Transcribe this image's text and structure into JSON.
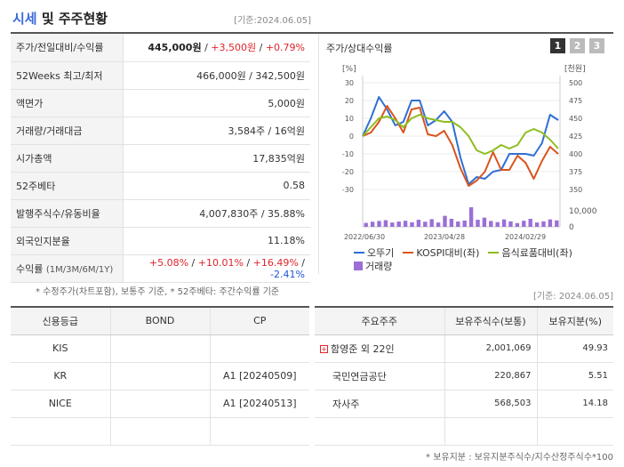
{
  "header": {
    "title_a": "시세",
    "title_b": " 및 주주현황",
    "date": "[기준:2024.06.05]"
  },
  "quote": {
    "price_row": {
      "label": "주가/전일대비/수익률",
      "price": "445,000원",
      "sep1": " / ",
      "change": "+3,500원",
      "sep2": " / ",
      "rate": "+0.79%"
    },
    "week52": {
      "label": "52Weeks 최고/최저",
      "value": "466,000원 / 342,500원"
    },
    "par": {
      "label": "액면가",
      "value": "5,000원"
    },
    "volume": {
      "label": "거래량/거래대금",
      "value": "3,584주 / 16억원"
    },
    "mktcap": {
      "label": "시가총액",
      "value": "17,835억원"
    },
    "beta": {
      "label": "52주베타",
      "value": "0.58"
    },
    "shares": {
      "label": "발행주식수/유동비율",
      "value": "4,007,830주 / 35.88%"
    },
    "foreign": {
      "label": "외국인지분율",
      "value": "11.18%"
    },
    "returns": {
      "label": "수익률",
      "label_sub": "(1M/3M/6M/1Y)",
      "r1": "+5.08%",
      "r2": "+10.01%",
      "r3": "+16.49%",
      "r4": "-2.41%",
      "sep": " / "
    }
  },
  "note1": "* 수정주가(차트포함), 보통주 기준, * 52주베타: 주간수익률 기준",
  "chart": {
    "title": "주가/상대수익률",
    "tabs": [
      "1",
      "2",
      "3"
    ],
    "left_unit": "[%]",
    "right_unit": "[천원]",
    "vol_tick": "10,000",
    "vol_zero": "0"
  },
  "chart_data": {
    "type": "line",
    "x_ticks": [
      "2022/06/30",
      "2023/04/28",
      "2024/02/29"
    ],
    "left_axis": {
      "ticks": [
        30,
        20,
        10,
        0,
        -10,
        -20,
        -30
      ],
      "ylim": [
        -30,
        30
      ]
    },
    "right_axis": {
      "ticks": [
        500,
        475,
        450,
        425,
        400,
        375,
        350
      ],
      "ylim": [
        350,
        500
      ]
    },
    "series": [
      {
        "name": "오뚜기",
        "color": "#2f6fd6",
        "axis": "left",
        "values": [
          0,
          10,
          22,
          15,
          6,
          8,
          20,
          20,
          6,
          9,
          14,
          8,
          -12,
          -27,
          -23,
          -24,
          -20,
          -19,
          -10,
          -10,
          -10,
          -11,
          -4,
          12,
          9
        ]
      },
      {
        "name": "KOSPI대비(좌)",
        "color": "#d9541e",
        "axis": "left",
        "values": [
          0,
          2,
          8,
          17,
          10,
          2,
          15,
          16,
          1,
          0,
          3,
          -5,
          -18,
          -28,
          -25,
          -20,
          -9,
          -19,
          -19,
          -11,
          -15,
          -24,
          -14,
          -6,
          -10
        ]
      },
      {
        "name": "음식료품대비(좌)",
        "color": "#8dbd1f",
        "axis": "left",
        "values": [
          0,
          5,
          10,
          11,
          9,
          5,
          10,
          12,
          10,
          9,
          8,
          8,
          5,
          0,
          -8,
          -10,
          -8,
          -5,
          -7,
          -5,
          2,
          4,
          2,
          -2,
          -7
        ]
      },
      {
        "name": "거래량",
        "color": "#9b6fd6",
        "axis": "volume",
        "values": [
          2000,
          2600,
          3000,
          3400,
          2200,
          2700,
          3100,
          2300,
          3600,
          2600,
          3900,
          2200,
          5600,
          4100,
          2700,
          3200,
          10000,
          3600,
          4700,
          3000,
          2400,
          3800,
          2800,
          1900,
          3100,
          4100,
          2200,
          2800,
          3800,
          3300
        ],
        "ylim": [
          0,
          10000
        ]
      }
    ]
  },
  "legend": {
    "s1": "오뚜기",
    "s2": "KOSPI대비(좌)",
    "s3": "음식료품대비(좌)",
    "s4": "거래량"
  },
  "date2": "[기준: 2024.06.05]",
  "credit": {
    "headers": [
      "신용등급",
      "BOND",
      "CP"
    ],
    "rows": [
      [
        "KIS",
        "",
        ""
      ],
      [
        "KR",
        "",
        "A1 [20240509]"
      ],
      [
        "NICE",
        "",
        "A1 [20240513]"
      ],
      [
        "",
        "",
        ""
      ]
    ]
  },
  "holders": {
    "headers": [
      "주요주주",
      "보유주식수(보통)",
      "보유지분(%)"
    ],
    "rows": [
      [
        "함영준 외 22인",
        "2,001,069",
        "49.93"
      ],
      [
        "국민연금공단",
        "220,867",
        "5.51"
      ],
      [
        "자사주",
        "568,503",
        "14.18"
      ],
      [
        "",
        "",
        ""
      ]
    ]
  },
  "note2": "* 보유지분 : 보유지분주식수/지수산정주식수*100"
}
